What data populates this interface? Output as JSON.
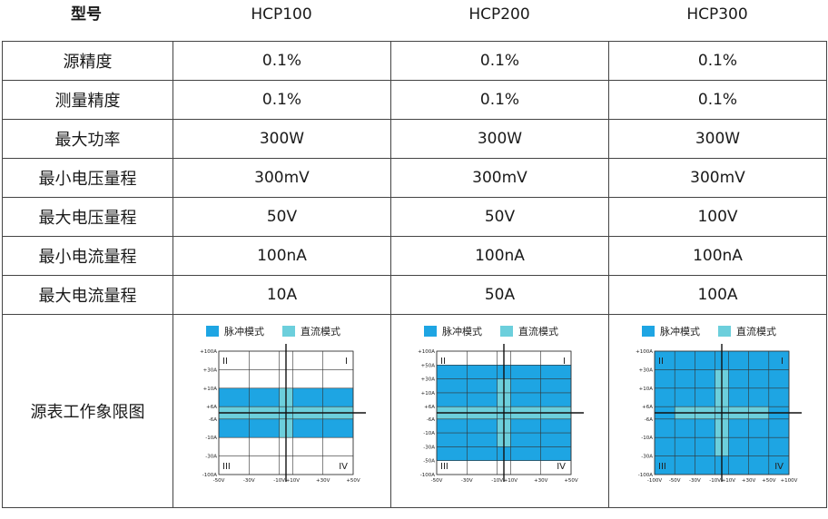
{
  "header": {
    "model_label": "型号",
    "models": [
      "HCP100",
      "HCP200",
      "HCP300"
    ]
  },
  "rows": [
    {
      "label": "源精度",
      "values": [
        "0.1%",
        "0.1%",
        "0.1%"
      ]
    },
    {
      "label": "测量精度",
      "values": [
        "0.1%",
        "0.1%",
        "0.1%"
      ]
    },
    {
      "label": "最大功率",
      "values": [
        "300W",
        "300W",
        "300W"
      ]
    },
    {
      "label": "最小电压量程",
      "values": [
        "300mV",
        "300mV",
        "300mV"
      ]
    },
    {
      "label": "最大电压量程",
      "values": [
        "50V",
        "50V",
        "100V"
      ]
    },
    {
      "label": "最小电流量程",
      "values": [
        "100nA",
        "100nA",
        "100nA"
      ]
    },
    {
      "label": "最大电流量程",
      "values": [
        "10A",
        "50A",
        "100A"
      ]
    }
  ],
  "quadrant_row_label": "源表工作象限图",
  "colors": {
    "pulse": "#1ea5e3",
    "dc": "#6ccfdc",
    "grid": "#333333"
  },
  "diagrams": [
    {
      "legend": {
        "pulse": "脉冲模式",
        "dc": "直流模式"
      },
      "quadrants": [
        "I",
        "II",
        "III",
        "IV"
      ],
      "y_ticks": [
        "+100A",
        "+30A",
        "+10A",
        "+6A",
        "-6A",
        "-10A",
        "-30A",
        "-100A"
      ],
      "x_ticks": [
        "-50V",
        "-30V",
        "-10V",
        "+10V",
        "+30V",
        "+50V"
      ],
      "y_range": [
        -100,
        100
      ],
      "x_range": [
        -50,
        50
      ],
      "pulse_current_limit": 10,
      "pulse_voltage_limit": 50,
      "dc_regions": [
        {
          "v": [
            -50,
            50
          ],
          "i": [
            -6,
            6
          ]
        },
        {
          "v": [
            -10,
            10
          ],
          "i": [
            -10,
            10
          ]
        }
      ]
    },
    {
      "legend": {
        "pulse": "脉冲模式",
        "dc": "直流模式"
      },
      "quadrants": [
        "I",
        "II",
        "III",
        "IV"
      ],
      "y_ticks": [
        "+100A",
        "+50A",
        "+30A",
        "+10A",
        "+6A",
        "-6A",
        "-10A",
        "-30A",
        "-50A",
        "-100A"
      ],
      "x_ticks": [
        "-50V",
        "-30V",
        "-10V",
        "+10V",
        "+30V",
        "+50V"
      ],
      "y_range": [
        -100,
        100
      ],
      "x_range": [
        -50,
        50
      ],
      "pulse_current_limit": 50,
      "pulse_voltage_limit": 50,
      "dc_regions": [
        {
          "v": [
            -50,
            50
          ],
          "i": [
            -6,
            6
          ]
        },
        {
          "v": [
            -10,
            10
          ],
          "i": [
            -30,
            30
          ]
        }
      ]
    },
    {
      "legend": {
        "pulse": "脉冲模式",
        "dc": "直流模式"
      },
      "quadrants": [
        "I",
        "II",
        "III",
        "IV"
      ],
      "y_ticks": [
        "+100A",
        "+30A",
        "+10A",
        "+6A",
        "-6A",
        "-10A",
        "-30A",
        "-100A"
      ],
      "x_ticks": [
        "-100V",
        "-50V",
        "-30V",
        "-10V",
        "+10V",
        "+30V",
        "+50V",
        "+100V"
      ],
      "y_range": [
        -100,
        100
      ],
      "x_range": [
        -100,
        100
      ],
      "pulse_current_limit": 100,
      "pulse_voltage_limit": 100,
      "dc_regions": [
        {
          "v": [
            -50,
            50
          ],
          "i": [
            -6,
            6
          ]
        },
        {
          "v": [
            -10,
            10
          ],
          "i": [
            -30,
            30
          ]
        }
      ]
    }
  ]
}
